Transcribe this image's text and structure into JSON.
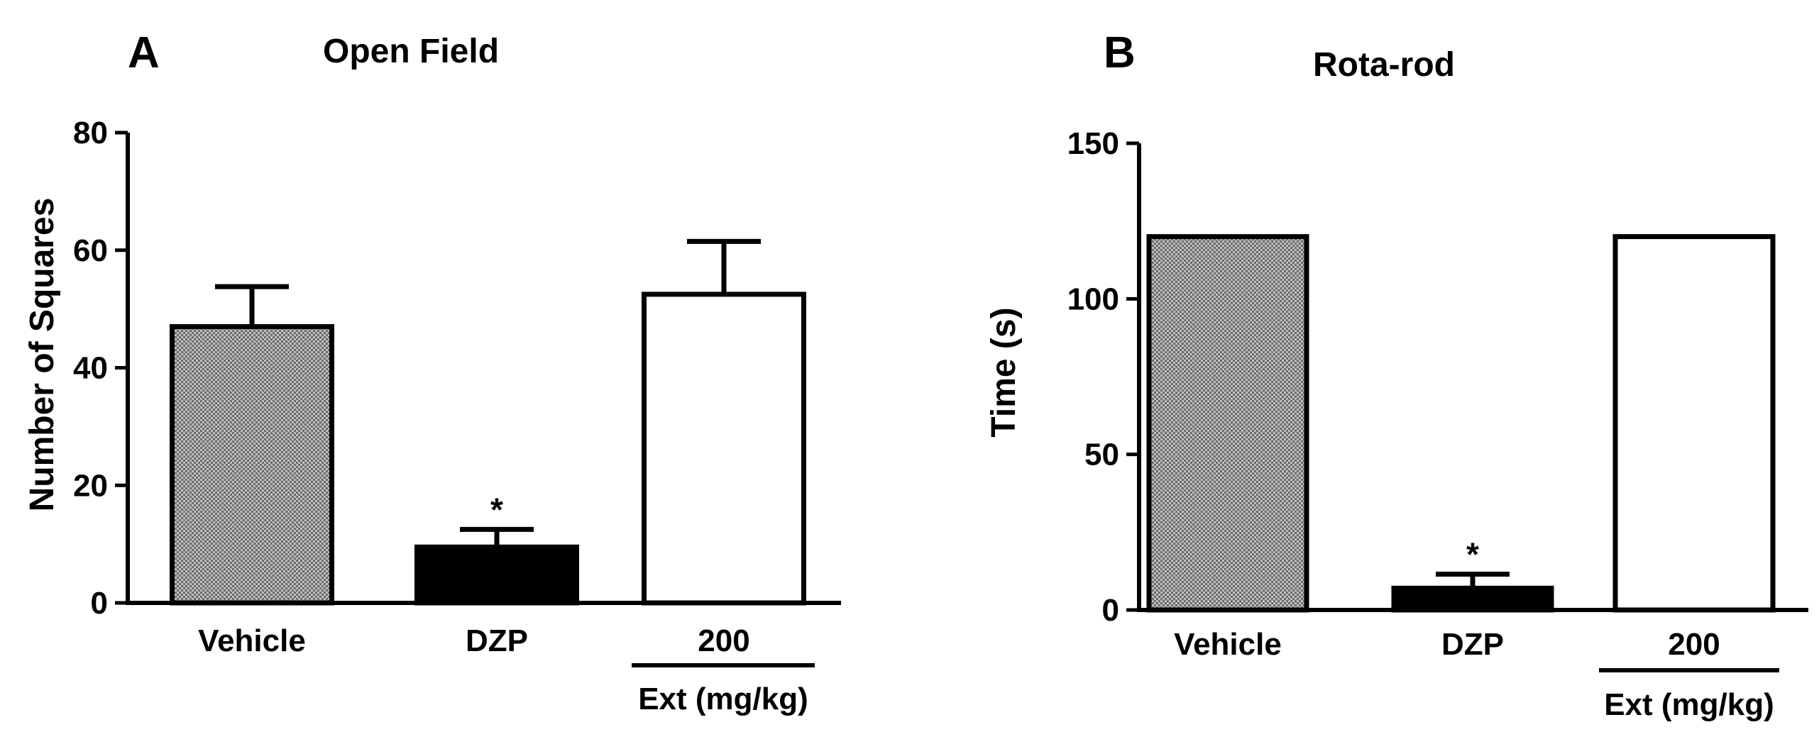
{
  "figure": {
    "panels": [
      {
        "letter": "A",
        "title": "Open Field"
      },
      {
        "letter": "B",
        "title": "Rota-rod"
      }
    ]
  },
  "chart_data": [
    {
      "type": "bar",
      "panel": "A",
      "title": "Open Field",
      "xlabel": "",
      "ylabel": "Number of Squares",
      "ylim": [
        0,
        80
      ],
      "yticks": [
        0,
        20,
        40,
        60,
        80
      ],
      "categories": [
        "Vehicle",
        "DZP",
        "200"
      ],
      "values": [
        47,
        9.5,
        52.5
      ],
      "errors": [
        6.8,
        3,
        9
      ],
      "significance": [
        "",
        "*",
        ""
      ],
      "fills": [
        "dotted-gray",
        "#000000",
        "#ffffff"
      ],
      "group_label": {
        "text": "Ext (mg/kg)",
        "categories": [
          "200"
        ]
      },
      "grid": false,
      "legend": "none"
    },
    {
      "type": "bar",
      "panel": "B",
      "title": "Rota-rod",
      "xlabel": "",
      "ylabel": "Time (s)",
      "ylim": [
        0,
        150
      ],
      "yticks": [
        0,
        50,
        100,
        150
      ],
      "categories": [
        "Vehicle",
        "DZP",
        "200"
      ],
      "values": [
        120,
        7,
        120
      ],
      "errors": [
        0,
        4.5,
        0
      ],
      "significance": [
        "",
        "*",
        ""
      ],
      "fills": [
        "dotted-gray",
        "#000000",
        "#ffffff"
      ],
      "group_label": {
        "text": "Ext (mg/kg)",
        "categories": [
          "200"
        ]
      },
      "grid": false,
      "legend": "none"
    }
  ]
}
